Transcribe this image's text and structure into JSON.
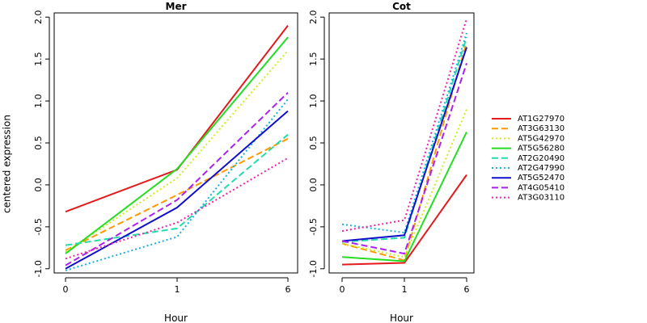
{
  "chart_data": {
    "type": "line",
    "ylabel": "centered expression",
    "xlabel": "Hour",
    "x_ticks": [
      "0",
      "1",
      "6"
    ],
    "y_ticks": [
      "-1.0",
      "-0.5",
      "0.0",
      "0.5",
      "1.0",
      "1.5",
      "2.0"
    ],
    "ylim": [
      -1.05,
      2.05
    ],
    "legend_position": "right",
    "panels": [
      {
        "title": "Mer",
        "series": [
          {
            "name": "AT1G27970",
            "values": [
              -0.32,
              0.18,
              1.9
            ]
          },
          {
            "name": "AT3G63130",
            "values": [
              -0.78,
              -0.12,
              0.55
            ]
          },
          {
            "name": "AT5G42970",
            "values": [
              -0.8,
              0.08,
              1.6
            ]
          },
          {
            "name": "AT5G56280",
            "values": [
              -0.82,
              0.19,
              1.76
            ]
          },
          {
            "name": "AT2G20490",
            "values": [
              -0.72,
              -0.52,
              0.6
            ]
          },
          {
            "name": "AT2G47990",
            "values": [
              -1.02,
              -0.62,
              1.02
            ]
          },
          {
            "name": "AT5G52470",
            "values": [
              -1.0,
              -0.27,
              0.88
            ]
          },
          {
            "name": "AT4G05410",
            "values": [
              -0.96,
              -0.18,
              1.1
            ]
          },
          {
            "name": "AT3G03110",
            "values": [
              -0.88,
              -0.45,
              0.32
            ]
          }
        ]
      },
      {
        "title": "Cot",
        "series": [
          {
            "name": "AT1G27970",
            "values": [
              -0.95,
              -0.93,
              0.12
            ]
          },
          {
            "name": "AT3G63130",
            "values": [
              -0.7,
              -0.9,
              1.7
            ]
          },
          {
            "name": "AT5G42970",
            "values": [
              -0.7,
              -0.86,
              0.9
            ]
          },
          {
            "name": "AT5G56280",
            "values": [
              -0.86,
              -0.91,
              0.63
            ]
          },
          {
            "name": "AT2G20490",
            "values": [
              -0.68,
              -0.63,
              1.76
            ]
          },
          {
            "name": "AT2G47990",
            "values": [
              -0.47,
              -0.57,
              1.81
            ]
          },
          {
            "name": "AT5G52470",
            "values": [
              -0.67,
              -0.6,
              1.64
            ]
          },
          {
            "name": "AT4G05410",
            "values": [
              -0.67,
              -0.82,
              1.45
            ]
          },
          {
            "name": "AT3G03110",
            "values": [
              -0.55,
              -0.42,
              1.98
            ]
          }
        ]
      }
    ]
  },
  "series_styles": [
    {
      "color": "#e41a1c",
      "dash": "solid"
    },
    {
      "color": "#ff9900",
      "dash": "dashed"
    },
    {
      "color": "#ccee22",
      "dash": "dotted"
    },
    {
      "color": "#22dd22",
      "dash": "solid"
    },
    {
      "color": "#22ddaa",
      "dash": "dashed"
    },
    {
      "color": "#1ab0e0",
      "dash": "dotted"
    },
    {
      "color": "#1010cc",
      "dash": "solid"
    },
    {
      "color": "#aa22ee",
      "dash": "dashed"
    },
    {
      "color": "#ee22aa",
      "dash": "dotted"
    }
  ]
}
